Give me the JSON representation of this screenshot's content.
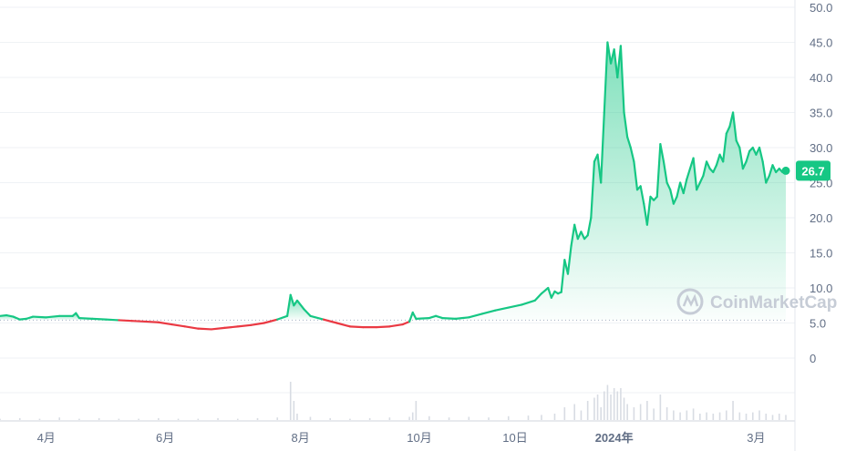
{
  "watermark": "CoinMarketCap",
  "chart_data": {
    "type": "area",
    "ylim": [
      0,
      50
    ],
    "y_ticks": [
      "50.0",
      "45.0",
      "40.0",
      "35.0",
      "30.0",
      "25.0",
      "20.0",
      "15.0",
      "10.0",
      "5.0",
      "0"
    ],
    "y_tick_values": [
      50,
      45,
      40,
      35,
      30,
      25,
      20,
      15,
      10,
      5,
      0
    ],
    "x_ticks": [
      "4月",
      "6月",
      "8月",
      "10月",
      "10日",
      "2024年",
      "3月"
    ],
    "x_tick_positions": [
      0.07,
      0.25,
      0.455,
      0.635,
      0.78,
      0.93,
      1.145
    ],
    "baseline": 5.4,
    "current_value": "26.7",
    "colors": {
      "up": "#16c784",
      "down": "#ea3943",
      "badge": "#16c784",
      "grid": "#eff2f5",
      "volume": "#d8dce3"
    },
    "price_series": [
      [
        0.0,
        6.0
      ],
      [
        0.01,
        6.1
      ],
      [
        0.02,
        5.9
      ],
      [
        0.03,
        5.5
      ],
      [
        0.04,
        5.6
      ],
      [
        0.05,
        5.9
      ],
      [
        0.07,
        5.8
      ],
      [
        0.09,
        6.0
      ],
      [
        0.11,
        6.0
      ],
      [
        0.115,
        6.4
      ],
      [
        0.12,
        5.7
      ],
      [
        0.14,
        5.6
      ],
      [
        0.16,
        5.5
      ],
      [
        0.18,
        5.4
      ],
      [
        0.2,
        5.3
      ],
      [
        0.22,
        5.2
      ],
      [
        0.24,
        5.1
      ],
      [
        0.26,
        4.8
      ],
      [
        0.28,
        4.5
      ],
      [
        0.3,
        4.2
      ],
      [
        0.32,
        4.1
      ],
      [
        0.34,
        4.3
      ],
      [
        0.36,
        4.5
      ],
      [
        0.38,
        4.7
      ],
      [
        0.4,
        5.0
      ],
      [
        0.42,
        5.5
      ],
      [
        0.435,
        6.0
      ],
      [
        0.44,
        9.0
      ],
      [
        0.445,
        7.5
      ],
      [
        0.45,
        8.2
      ],
      [
        0.46,
        7.0
      ],
      [
        0.47,
        6.0
      ],
      [
        0.49,
        5.5
      ],
      [
        0.51,
        5.0
      ],
      [
        0.53,
        4.5
      ],
      [
        0.55,
        4.4
      ],
      [
        0.57,
        4.4
      ],
      [
        0.59,
        4.5
      ],
      [
        0.61,
        4.8
      ],
      [
        0.62,
        5.2
      ],
      [
        0.625,
        6.5
      ],
      [
        0.63,
        5.6
      ],
      [
        0.65,
        5.7
      ],
      [
        0.66,
        6.0
      ],
      [
        0.67,
        5.7
      ],
      [
        0.69,
        5.6
      ],
      [
        0.71,
        5.8
      ],
      [
        0.73,
        6.3
      ],
      [
        0.75,
        6.8
      ],
      [
        0.77,
        7.2
      ],
      [
        0.79,
        7.6
      ],
      [
        0.81,
        8.2
      ],
      [
        0.82,
        9.2
      ],
      [
        0.83,
        10.0
      ],
      [
        0.835,
        8.6
      ],
      [
        0.84,
        9.5
      ],
      [
        0.845,
        9.2
      ],
      [
        0.85,
        9.4
      ],
      [
        0.855,
        14.0
      ],
      [
        0.86,
        12.0
      ],
      [
        0.865,
        16.0
      ],
      [
        0.87,
        19.0
      ],
      [
        0.875,
        17.0
      ],
      [
        0.88,
        18.0
      ],
      [
        0.885,
        17.0
      ],
      [
        0.89,
        17.5
      ],
      [
        0.895,
        20.0
      ],
      [
        0.9,
        28.0
      ],
      [
        0.905,
        29.0
      ],
      [
        0.91,
        25.0
      ],
      [
        0.915,
        35.0
      ],
      [
        0.92,
        45.0
      ],
      [
        0.925,
        42.0
      ],
      [
        0.93,
        44.0
      ],
      [
        0.935,
        40.0
      ],
      [
        0.94,
        44.5
      ],
      [
        0.945,
        35.0
      ],
      [
        0.95,
        31.5
      ],
      [
        0.955,
        30.0
      ],
      [
        0.96,
        28.0
      ],
      [
        0.965,
        24.0
      ],
      [
        0.97,
        24.5
      ],
      [
        0.975,
        22.0
      ],
      [
        0.98,
        19.0
      ],
      [
        0.985,
        23.0
      ],
      [
        0.99,
        22.5
      ],
      [
        0.995,
        23.0
      ],
      [
        1.0,
        30.5
      ],
      [
        1.005,
        28.0
      ],
      [
        1.01,
        25.0
      ],
      [
        1.015,
        24.0
      ],
      [
        1.02,
        22.0
      ],
      [
        1.025,
        23.0
      ],
      [
        1.03,
        25.0
      ],
      [
        1.035,
        23.5
      ],
      [
        1.04,
        25.5
      ],
      [
        1.045,
        27.0
      ],
      [
        1.05,
        28.5
      ],
      [
        1.055,
        24.0
      ],
      [
        1.06,
        25.0
      ],
      [
        1.065,
        26.0
      ],
      [
        1.07,
        28.0
      ],
      [
        1.075,
        27.0
      ],
      [
        1.08,
        26.5
      ],
      [
        1.085,
        27.5
      ],
      [
        1.09,
        29.0
      ],
      [
        1.095,
        28.0
      ],
      [
        1.1,
        32.0
      ],
      [
        1.105,
        33.0
      ],
      [
        1.11,
        35.0
      ],
      [
        1.115,
        31.0
      ],
      [
        1.12,
        30.0
      ],
      [
        1.125,
        27.0
      ],
      [
        1.13,
        28.0
      ],
      [
        1.135,
        29.5
      ],
      [
        1.14,
        30.0
      ],
      [
        1.145,
        29.0
      ],
      [
        1.15,
        30.0
      ],
      [
        1.155,
        28.0
      ],
      [
        1.16,
        25.0
      ],
      [
        1.165,
        26.0
      ],
      [
        1.17,
        27.5
      ],
      [
        1.175,
        26.5
      ],
      [
        1.18,
        27.0
      ],
      [
        1.185,
        26.5
      ],
      [
        1.19,
        26.7
      ]
    ],
    "volume_series": [
      [
        0.0,
        0.02
      ],
      [
        0.03,
        0.03
      ],
      [
        0.06,
        0.02
      ],
      [
        0.09,
        0.04
      ],
      [
        0.12,
        0.02
      ],
      [
        0.15,
        0.03
      ],
      [
        0.18,
        0.02
      ],
      [
        0.21,
        0.02
      ],
      [
        0.24,
        0.03
      ],
      [
        0.27,
        0.02
      ],
      [
        0.3,
        0.02
      ],
      [
        0.33,
        0.03
      ],
      [
        0.36,
        0.02
      ],
      [
        0.39,
        0.03
      ],
      [
        0.42,
        0.04
      ],
      [
        0.44,
        0.6
      ],
      [
        0.445,
        0.3
      ],
      [
        0.45,
        0.1
      ],
      [
        0.47,
        0.05
      ],
      [
        0.5,
        0.03
      ],
      [
        0.53,
        0.02
      ],
      [
        0.56,
        0.03
      ],
      [
        0.59,
        0.04
      ],
      [
        0.62,
        0.05
      ],
      [
        0.625,
        0.12
      ],
      [
        0.63,
        0.3
      ],
      [
        0.65,
        0.06
      ],
      [
        0.68,
        0.04
      ],
      [
        0.71,
        0.05
      ],
      [
        0.74,
        0.04
      ],
      [
        0.77,
        0.06
      ],
      [
        0.8,
        0.07
      ],
      [
        0.82,
        0.08
      ],
      [
        0.84,
        0.1
      ],
      [
        0.855,
        0.2
      ],
      [
        0.87,
        0.25
      ],
      [
        0.88,
        0.15
      ],
      [
        0.89,
        0.3
      ],
      [
        0.9,
        0.35
      ],
      [
        0.905,
        0.4
      ],
      [
        0.91,
        0.2
      ],
      [
        0.915,
        0.45
      ],
      [
        0.92,
        0.55
      ],
      [
        0.925,
        0.4
      ],
      [
        0.93,
        0.5
      ],
      [
        0.935,
        0.45
      ],
      [
        0.94,
        0.5
      ],
      [
        0.945,
        0.35
      ],
      [
        0.95,
        0.25
      ],
      [
        0.96,
        0.2
      ],
      [
        0.97,
        0.25
      ],
      [
        0.98,
        0.3
      ],
      [
        0.99,
        0.18
      ],
      [
        1.0,
        0.4
      ],
      [
        1.01,
        0.2
      ],
      [
        1.02,
        0.15
      ],
      [
        1.03,
        0.12
      ],
      [
        1.04,
        0.15
      ],
      [
        1.05,
        0.18
      ],
      [
        1.06,
        0.1
      ],
      [
        1.07,
        0.12
      ],
      [
        1.08,
        0.1
      ],
      [
        1.09,
        0.12
      ],
      [
        1.1,
        0.15
      ],
      [
        1.11,
        0.3
      ],
      [
        1.12,
        0.12
      ],
      [
        1.13,
        0.1
      ],
      [
        1.14,
        0.12
      ],
      [
        1.15,
        0.15
      ],
      [
        1.16,
        0.1
      ],
      [
        1.17,
        0.08
      ],
      [
        1.18,
        0.1
      ],
      [
        1.19,
        0.08
      ]
    ]
  }
}
